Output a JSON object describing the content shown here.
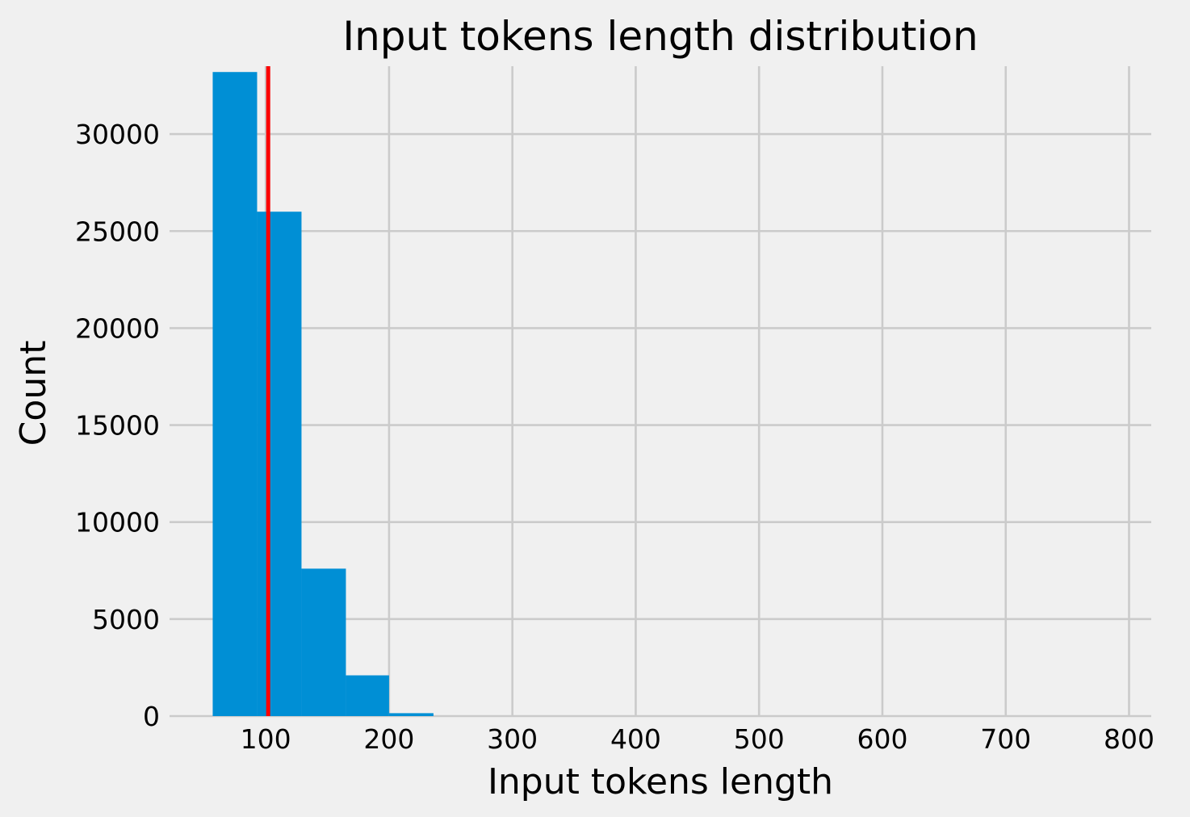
{
  "chart_data": {
    "type": "bar",
    "title": "Input tokens length distribution",
    "xlabel": "Input tokens length",
    "ylabel": "Count",
    "xlim": [
      22,
      818
    ],
    "ylim": [
      0,
      33500
    ],
    "xticks": [
      100,
      200,
      300,
      400,
      500,
      600,
      700,
      800
    ],
    "xtick_labels": [
      "100",
      "200",
      "300",
      "400",
      "500",
      "600",
      "700",
      "800"
    ],
    "yticks": [
      0,
      5000,
      10000,
      15000,
      20000,
      25000,
      30000
    ],
    "ytick_labels": [
      "0",
      "5000",
      "10000",
      "15000",
      "20000",
      "25000",
      "30000"
    ],
    "grid": true,
    "bar_color": "#008fd5",
    "background_color": "#f0f0f0",
    "grid_color": "#cbcbcb",
    "bins": [
      {
        "x0": 57,
        "x1": 93,
        "count": 33200
      },
      {
        "x0": 93,
        "x1": 129,
        "count": 26000
      },
      {
        "x0": 129,
        "x1": 165,
        "count": 7600
      },
      {
        "x0": 165,
        "x1": 200,
        "count": 2100
      },
      {
        "x0": 200,
        "x1": 236,
        "count": 150
      }
    ],
    "reference_line": {
      "x": 102,
      "color": "#fc0000"
    }
  }
}
